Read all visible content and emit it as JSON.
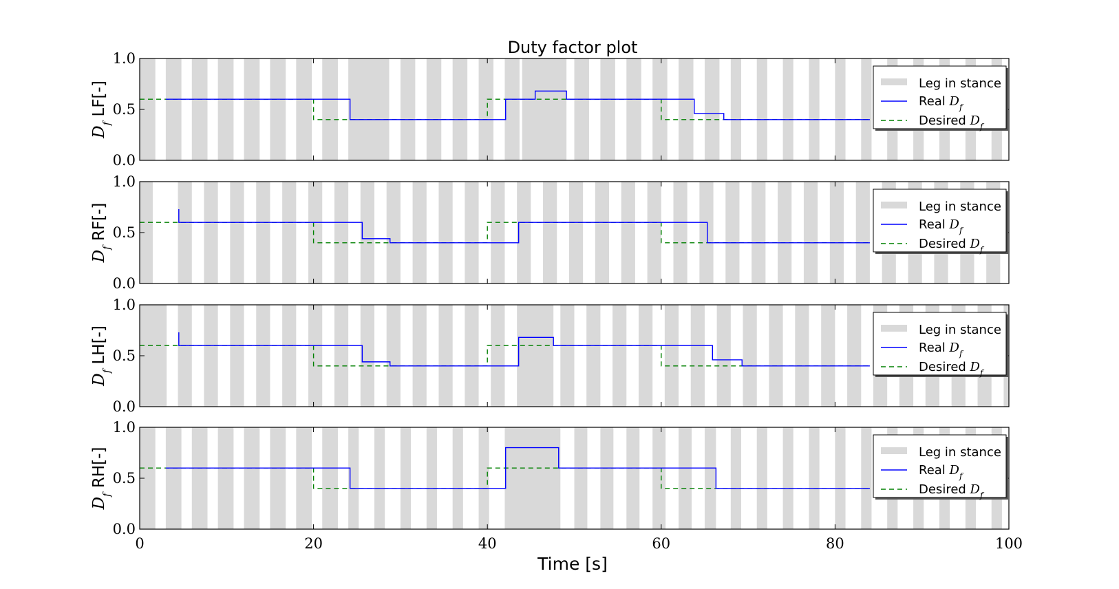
{
  "colors": {
    "stance": "#d9d9d9",
    "real": "#0000ff",
    "desired": "#008000",
    "frame": "#000000"
  },
  "chart_data": {
    "type": "line",
    "title": "Duty factor plot",
    "xlabel": "Time [s]",
    "xlim": [
      0,
      100
    ],
    "xticks": [
      0,
      20,
      40,
      60,
      80,
      100
    ],
    "xtick_labels": [
      "0",
      "20",
      "40",
      "60",
      "80",
      "100"
    ],
    "ylim": [
      0,
      1
    ],
    "yticks": [
      0,
      0.5,
      1
    ],
    "ytick_labels": [
      "0.0",
      "0.5",
      "1.0"
    ],
    "legend_position": "top-right",
    "legend": {
      "stance": "Leg in stance",
      "real_prefix": "Real ",
      "desired_prefix": "Desired ",
      "symbol": "D",
      "symbol_sub": "f"
    },
    "panels": [
      {
        "leg": "LF",
        "ylabel_symbol": "D",
        "ylabel_sub": "f",
        "ylabel_text": " LF[-]",
        "stance_intervals": [
          [
            0,
            1.8
          ],
          [
            3,
            4.8
          ],
          [
            6,
            7.8
          ],
          [
            9,
            10.8
          ],
          [
            12,
            13.8
          ],
          [
            15,
            16.8
          ],
          [
            18,
            19.8
          ],
          [
            21,
            22.8
          ],
          [
            24,
            28.7
          ],
          [
            30,
            31.7
          ],
          [
            33,
            34.7
          ],
          [
            36,
            37.7
          ],
          [
            39,
            40.7
          ],
          [
            42,
            43.7
          ],
          [
            44,
            49.1
          ],
          [
            50,
            51.7
          ],
          [
            53,
            54.7
          ],
          [
            56,
            57.7
          ],
          [
            59,
            60.7
          ],
          [
            62,
            63.7
          ],
          [
            65,
            66.7
          ],
          [
            68,
            69.2
          ],
          [
            71,
            72.2
          ],
          [
            74,
            75.2
          ],
          [
            77,
            78.2
          ],
          [
            80,
            81.2
          ],
          [
            83,
            84.2
          ],
          [
            86,
            87.2
          ],
          [
            89,
            90.2
          ],
          [
            92,
            93.2
          ],
          [
            95,
            96.2
          ],
          [
            98,
            99.2
          ]
        ],
        "real": [
          [
            3,
            0.6
          ],
          [
            24.2,
            0.6
          ],
          [
            24.2,
            0.4
          ],
          [
            42.1,
            0.4
          ],
          [
            42.1,
            0.6
          ],
          [
            45.5,
            0.6
          ],
          [
            45.5,
            0.68
          ],
          [
            49.1,
            0.68
          ],
          [
            49.1,
            0.6
          ],
          [
            63.8,
            0.6
          ],
          [
            63.8,
            0.46
          ],
          [
            67.2,
            0.46
          ],
          [
            67.2,
            0.4
          ],
          [
            84,
            0.4
          ]
        ],
        "desired": [
          [
            0,
            0.6
          ],
          [
            20,
            0.6
          ],
          [
            20,
            0.4
          ],
          [
            40,
            0.4
          ],
          [
            40,
            0.6
          ],
          [
            60,
            0.6
          ],
          [
            60,
            0.4
          ],
          [
            84,
            0.4
          ]
        ]
      },
      {
        "leg": "RF",
        "ylabel_symbol": "D",
        "ylabel_sub": "f",
        "ylabel_text": " RF[-]",
        "stance_intervals": [
          [
            0,
            1.5
          ],
          [
            4.4,
            6
          ],
          [
            7.4,
            9
          ],
          [
            10.4,
            12
          ],
          [
            13.4,
            15
          ],
          [
            16.4,
            18
          ],
          [
            19.4,
            21
          ],
          [
            22.4,
            24
          ],
          [
            25.4,
            27
          ],
          [
            28.4,
            30
          ],
          [
            31.4,
            33
          ],
          [
            34.4,
            36
          ],
          [
            37.4,
            39
          ],
          [
            40.4,
            42
          ],
          [
            43.4,
            45
          ],
          [
            46.4,
            48
          ],
          [
            49.4,
            51
          ],
          [
            52.4,
            54
          ],
          [
            55.4,
            57
          ],
          [
            58.4,
            60
          ],
          [
            61.4,
            63
          ],
          [
            64.4,
            66
          ],
          [
            67.4,
            69
          ],
          [
            70.4,
            72
          ],
          [
            73.4,
            75
          ],
          [
            76.4,
            78
          ],
          [
            79.4,
            81
          ],
          [
            82.4,
            84
          ],
          [
            85.4,
            87
          ],
          [
            88.4,
            90
          ],
          [
            91.4,
            93
          ],
          [
            94.4,
            96
          ],
          [
            97.4,
            99
          ]
        ],
        "real": [
          [
            4.5,
            0.73
          ],
          [
            4.5,
            0.6
          ],
          [
            25.6,
            0.6
          ],
          [
            25.6,
            0.44
          ],
          [
            28.8,
            0.44
          ],
          [
            28.8,
            0.4
          ],
          [
            43.6,
            0.4
          ],
          [
            43.6,
            0.6
          ],
          [
            65.3,
            0.6
          ],
          [
            65.3,
            0.4
          ],
          [
            84,
            0.4
          ]
        ],
        "desired": [
          [
            0,
            0.6
          ],
          [
            20,
            0.6
          ],
          [
            20,
            0.4
          ],
          [
            40,
            0.4
          ],
          [
            40,
            0.6
          ],
          [
            60,
            0.6
          ],
          [
            60,
            0.4
          ],
          [
            84,
            0.4
          ]
        ]
      },
      {
        "leg": "LH",
        "ylabel_symbol": "D",
        "ylabel_sub": "f",
        "ylabel_text": " LH[-]",
        "stance_intervals": [
          [
            0,
            3.1
          ],
          [
            4.4,
            6
          ],
          [
            7.4,
            9
          ],
          [
            10.4,
            12
          ],
          [
            13.4,
            15
          ],
          [
            16.4,
            18
          ],
          [
            19.4,
            21
          ],
          [
            22.4,
            24
          ],
          [
            25.4,
            27
          ],
          [
            28.4,
            30
          ],
          [
            31.4,
            33
          ],
          [
            34.4,
            36
          ],
          [
            37.4,
            39
          ],
          [
            40.4,
            42
          ],
          [
            43.4,
            47.6
          ],
          [
            48.4,
            50
          ],
          [
            51.4,
            53
          ],
          [
            54.4,
            56
          ],
          [
            57.4,
            59
          ],
          [
            60.4,
            62
          ],
          [
            63.4,
            65
          ],
          [
            66.4,
            68
          ],
          [
            69.4,
            71
          ],
          [
            72.4,
            74
          ],
          [
            75.4,
            77
          ],
          [
            78.4,
            80
          ],
          [
            81.4,
            83
          ],
          [
            84.4,
            86
          ],
          [
            87.4,
            89
          ],
          [
            90.4,
            92
          ],
          [
            93.4,
            95
          ],
          [
            96.4,
            98
          ],
          [
            99.4,
            100
          ]
        ],
        "real": [
          [
            4.5,
            0.73
          ],
          [
            4.5,
            0.6
          ],
          [
            25.6,
            0.6
          ],
          [
            25.6,
            0.44
          ],
          [
            28.8,
            0.44
          ],
          [
            28.8,
            0.4
          ],
          [
            43.6,
            0.4
          ],
          [
            43.6,
            0.68
          ],
          [
            47.6,
            0.68
          ],
          [
            47.6,
            0.6
          ],
          [
            65.9,
            0.6
          ],
          [
            65.9,
            0.46
          ],
          [
            69.3,
            0.46
          ],
          [
            69.3,
            0.4
          ],
          [
            84,
            0.4
          ]
        ],
        "desired": [
          [
            0,
            0.6
          ],
          [
            20,
            0.6
          ],
          [
            20,
            0.4
          ],
          [
            40,
            0.4
          ],
          [
            40,
            0.6
          ],
          [
            60,
            0.6
          ],
          [
            60,
            0.4
          ],
          [
            84,
            0.4
          ]
        ]
      },
      {
        "leg": "RH",
        "ylabel_symbol": "D",
        "ylabel_sub": "f",
        "ylabel_text": " RH[-]",
        "stance_intervals": [
          [
            0,
            1.8
          ],
          [
            3,
            4.8
          ],
          [
            6,
            7.8
          ],
          [
            9,
            10.8
          ],
          [
            12,
            13.8
          ],
          [
            15,
            16.8
          ],
          [
            18,
            19.8
          ],
          [
            21,
            22.8
          ],
          [
            24,
            25.2
          ],
          [
            27,
            28.2
          ],
          [
            30,
            31.2
          ],
          [
            33,
            34.2
          ],
          [
            36,
            37.2
          ],
          [
            39,
            40.2
          ],
          [
            42,
            48.4
          ],
          [
            50,
            51.5
          ],
          [
            53,
            54.5
          ],
          [
            56,
            57.5
          ],
          [
            59,
            60.5
          ],
          [
            62,
            63.5
          ],
          [
            65,
            66.3
          ],
          [
            68,
            69.2
          ],
          [
            71,
            72.2
          ],
          [
            74,
            75.2
          ],
          [
            77,
            78.2
          ],
          [
            80,
            81.2
          ],
          [
            83,
            84.2
          ],
          [
            86,
            87.2
          ],
          [
            89,
            90.2
          ],
          [
            92,
            93.2
          ],
          [
            95,
            96.2
          ],
          [
            98,
            99.2
          ]
        ],
        "real": [
          [
            3,
            0.6
          ],
          [
            24.2,
            0.6
          ],
          [
            24.2,
            0.4
          ],
          [
            42.1,
            0.4
          ],
          [
            42.1,
            0.8
          ],
          [
            48.2,
            0.8
          ],
          [
            48.2,
            0.6
          ],
          [
            66.3,
            0.6
          ],
          [
            66.3,
            0.4
          ],
          [
            84,
            0.4
          ]
        ],
        "desired": [
          [
            0,
            0.6
          ],
          [
            20,
            0.6
          ],
          [
            20,
            0.4
          ],
          [
            40,
            0.4
          ],
          [
            40,
            0.6
          ],
          [
            60,
            0.6
          ],
          [
            60,
            0.4
          ],
          [
            84,
            0.4
          ]
        ]
      }
    ]
  }
}
